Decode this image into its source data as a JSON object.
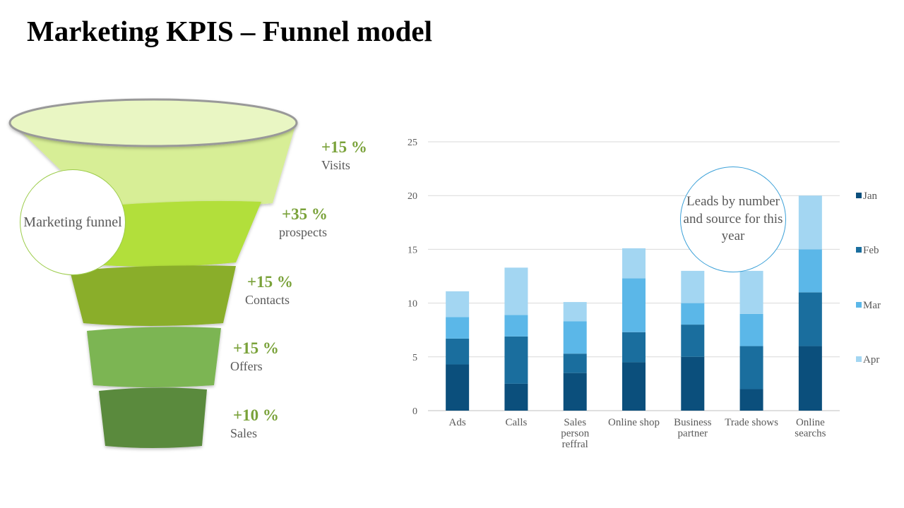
{
  "title": "Marketing KPIS – Funnel model",
  "funnel": {
    "callout": "Marketing funnel",
    "stages": [
      {
        "pct": "+15 %",
        "name": "Visits",
        "color": "#d7ee96"
      },
      {
        "pct": "+35 %",
        "name": "prospects",
        "color": "#b2df3a"
      },
      {
        "pct": "+15 %",
        "name": "Contacts",
        "color": "#8aae2b"
      },
      {
        "pct": "+15 %",
        "name": "Offers",
        "color": "#7cb553"
      },
      {
        "pct": "+10 %",
        "name": "Sales",
        "color": "#5a8a3c"
      }
    ],
    "rim_color": "#e9f6c3",
    "pct_color": "#7aa23a"
  },
  "chart_callout": "Leads by number and source for this year",
  "chart_data": {
    "type": "bar",
    "stacked": true,
    "categories": [
      "Ads",
      "Calls",
      "Sales person reffral",
      "Online shop",
      "Business partner",
      "Trade shows",
      "Online searchs"
    ],
    "series": [
      {
        "name": "Jan",
        "color": "#0b4f7c",
        "values": [
          4.3,
          2.5,
          3.5,
          4.5,
          5.0,
          2.0,
          6.0
        ]
      },
      {
        "name": "Feb",
        "color": "#1a6e9e",
        "values": [
          2.4,
          4.4,
          1.8,
          2.8,
          3.0,
          4.0,
          5.0
        ]
      },
      {
        "name": "Mar",
        "color": "#5bb7e8",
        "values": [
          2.0,
          2.0,
          3.0,
          5.0,
          2.0,
          3.0,
          4.0
        ]
      },
      {
        "name": "Apr",
        "color": "#a3d6f2",
        "values": [
          2.4,
          4.4,
          1.8,
          2.8,
          3.0,
          4.0,
          5.0
        ]
      }
    ],
    "ylim": [
      0,
      25
    ],
    "yticks": [
      0,
      5,
      10,
      15,
      20,
      25
    ],
    "grid": true,
    "legend": "right"
  }
}
